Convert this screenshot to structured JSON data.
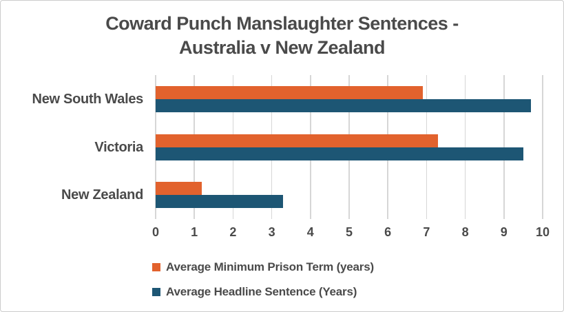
{
  "frame": {
    "background": "#FFFFFF",
    "border_color": "#CCCCCC"
  },
  "chart_data": {
    "type": "bar",
    "orientation": "horizontal",
    "title": "Coward Punch Manslaughter Sentences - Australia v New Zealand",
    "title_lines": [
      "Coward Punch Manslaughter Sentences -",
      "Australia v New Zealand"
    ],
    "categories": [
      "New South Wales",
      "Victoria",
      "New Zealand"
    ],
    "series": [
      {
        "name": "Average Minimum Prison Term (years)",
        "color": "#E2622D",
        "values": [
          6.9,
          7.3,
          1.2
        ]
      },
      {
        "name": "Average Headline Sentence (Years)",
        "color": "#1D5674",
        "values": [
          9.7,
          9.5,
          3.3
        ]
      }
    ],
    "xlabel": "",
    "ylabel": "",
    "xlim": [
      0,
      10
    ],
    "x_ticks": [
      0,
      1,
      2,
      3,
      4,
      5,
      6,
      7,
      8,
      9,
      10
    ],
    "grid": "vertical",
    "legend_position": "bottom-left",
    "text_color": "#4A4A4A",
    "grid_color": "#D6D6D6"
  }
}
